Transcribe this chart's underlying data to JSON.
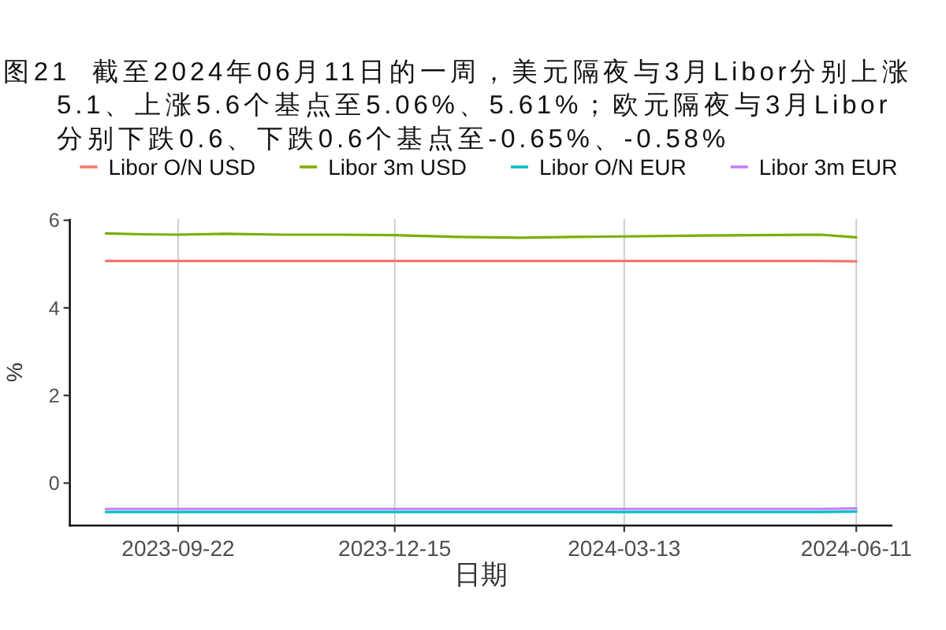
{
  "chart_data": {
    "type": "line",
    "title": "图21  截至2024年06月11日的一周，美元隔夜与3月Libor分别上涨5.1、上涨5.6个基点至5.06%、5.61%；欧元隔夜与3月Libor分别下跌0.6、下跌0.6个基点至-0.65%、-0.58%",
    "xlabel": "日期",
    "ylabel": "%",
    "x": [
      "2023-08-25",
      "2023-09-08",
      "2023-09-22",
      "2023-10-10",
      "2023-11-02",
      "2023-11-24",
      "2023-12-15",
      "2024-01-09",
      "2024-02-02",
      "2024-02-22",
      "2024-03-13",
      "2024-04-11",
      "2024-05-03",
      "2024-05-28",
      "2024-06-11"
    ],
    "series": [
      {
        "name": "Libor O/N USD",
        "color": "#f8766d",
        "values": [
          5.07,
          5.07,
          5.07,
          5.07,
          5.07,
          5.07,
          5.07,
          5.07,
          5.07,
          5.07,
          5.07,
          5.07,
          5.07,
          5.07,
          5.06
        ]
      },
      {
        "name": "Libor 3m USD",
        "color": "#7cae00",
        "values": [
          5.7,
          5.68,
          5.67,
          5.69,
          5.67,
          5.67,
          5.66,
          5.62,
          5.6,
          5.62,
          5.63,
          5.65,
          5.66,
          5.67,
          5.61
        ]
      },
      {
        "name": "Libor O/N EUR",
        "color": "#00bfc4",
        "values": [
          -0.66,
          -0.66,
          -0.66,
          -0.66,
          -0.66,
          -0.66,
          -0.66,
          -0.66,
          -0.66,
          -0.66,
          -0.66,
          -0.66,
          -0.66,
          -0.66,
          -0.65
        ]
      },
      {
        "name": "Libor 3m EUR",
        "color": "#c77cff",
        "values": [
          -0.59,
          -0.59,
          -0.59,
          -0.59,
          -0.59,
          -0.59,
          -0.59,
          -0.59,
          -0.59,
          -0.59,
          -0.59,
          -0.59,
          -0.59,
          -0.59,
          -0.58
        ]
      }
    ],
    "xlim": [
      "2023-08-11",
      "2024-06-25"
    ],
    "ylim": [
      -0.97,
      6.03
    ],
    "xticks": [
      "2023-09-22",
      "2023-12-15",
      "2024-03-13",
      "2024-06-11"
    ],
    "yticks": [
      0,
      2,
      4,
      6
    ],
    "grid": "x",
    "legend": "top"
  }
}
